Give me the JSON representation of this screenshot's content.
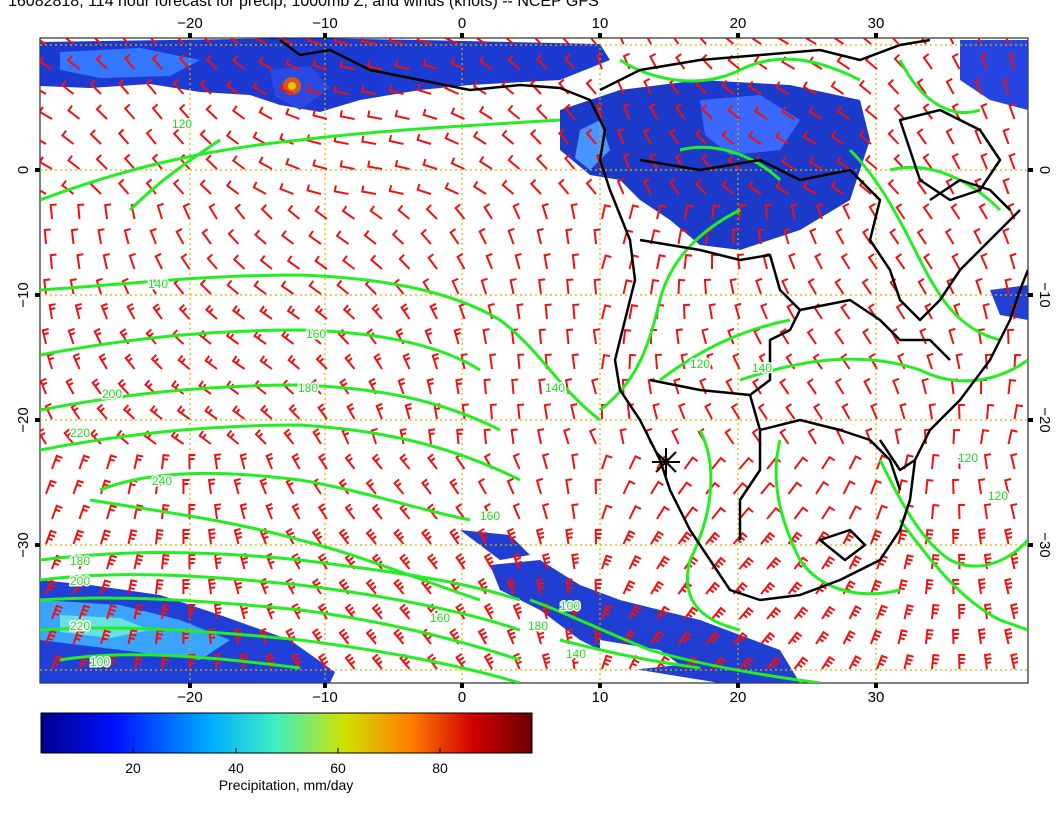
{
  "title": "16082818, 114 hour forecast for precip, 1000mb Z, and winds (knots) -- NCEP GFS",
  "map": {
    "lon_ticks": [
      "−20",
      "−10",
      "0",
      "10",
      "20",
      "30"
    ],
    "lat_ticks": [
      "0",
      "−10",
      "−20",
      "−30"
    ],
    "contour_labels": [
      "120",
      "140",
      "160",
      "180",
      "200",
      "220",
      "240",
      "160",
      "180",
      "200",
      "220",
      "120",
      "140",
      "140",
      "160",
      "180",
      "100",
      "140",
      "120",
      "120",
      "100"
    ],
    "colors": {
      "contour": "#22ee22",
      "wind_barb": "#ee1111",
      "coastline": "#000000",
      "gridline": "#d8b000"
    }
  },
  "colorbar": {
    "ticks": [
      "20",
      "40",
      "60",
      "80"
    ],
    "label": "Precipitation, mm/day",
    "colors": [
      "#00008a",
      "#0010ff",
      "#00b0ff",
      "#40f0c0",
      "#d0e000",
      "#ff8000",
      "#d00000",
      "#6a0000"
    ]
  }
}
